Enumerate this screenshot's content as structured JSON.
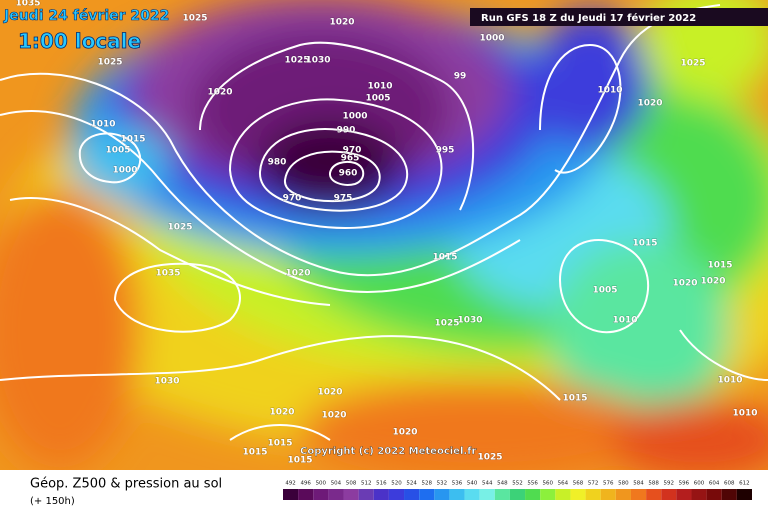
{
  "header": {
    "date": "Jeudi 24 février 2022",
    "time": "1:00 locale",
    "run": "Run GFS 18 Z du Jeudi 17 février 2022"
  },
  "copyright": "Copyright (c) 2022 Meteociel.fr",
  "footer": {
    "title": "Géop. Z500 & pression au sol",
    "subtitle": "(+ 150h)"
  },
  "scale": {
    "labels": [
      "492",
      "496",
      "500",
      "504",
      "508",
      "512",
      "516",
      "520",
      "524",
      "528",
      "532",
      "536",
      "540",
      "544",
      "548",
      "552",
      "556",
      "560",
      "564",
      "568",
      "572",
      "576",
      "580",
      "584",
      "588",
      "592",
      "596",
      "600",
      "604",
      "608",
      "612"
    ],
    "colors": [
      "#3a003a",
      "#5a0a5a",
      "#6e1a78",
      "#7a2a8c",
      "#8c3ca0",
      "#6a3cb4",
      "#4b32c8",
      "#3c3cdc",
      "#2850e6",
      "#1e6ef0",
      "#2896f0",
      "#3cbef0",
      "#5adcf0",
      "#78f0e6",
      "#5ae6a0",
      "#3cd278",
      "#50dc50",
      "#8cf03c",
      "#c8f028",
      "#f0f028",
      "#f0d21e",
      "#f0b41e",
      "#f0961e",
      "#f0781e",
      "#e6501e",
      "#d2321e",
      "#b41e1e",
      "#961414",
      "#780a0a",
      "#500505",
      "#1e0000"
    ]
  },
  "isobar_labels": [
    "1035",
    "1025",
    "1020",
    "1025",
    "1025",
    "1030",
    "1020",
    "1010",
    "1005",
    "99",
    "1000",
    "990",
    "995",
    "980",
    "970",
    "965",
    "960",
    "975",
    "970",
    "1010",
    "1015",
    "1005",
    "1000",
    "1025",
    "1035",
    "1020",
    "1015",
    "1025",
    "1030",
    "1030",
    "1020",
    "1020",
    "1020",
    "1020",
    "1015",
    "1015",
    "1015",
    "1025",
    "1000",
    "1025",
    "1010",
    "1020",
    "1015",
    "1015",
    "1020",
    "1020",
    "1005",
    "1010",
    "1015",
    "1010",
    "1010"
  ]
}
